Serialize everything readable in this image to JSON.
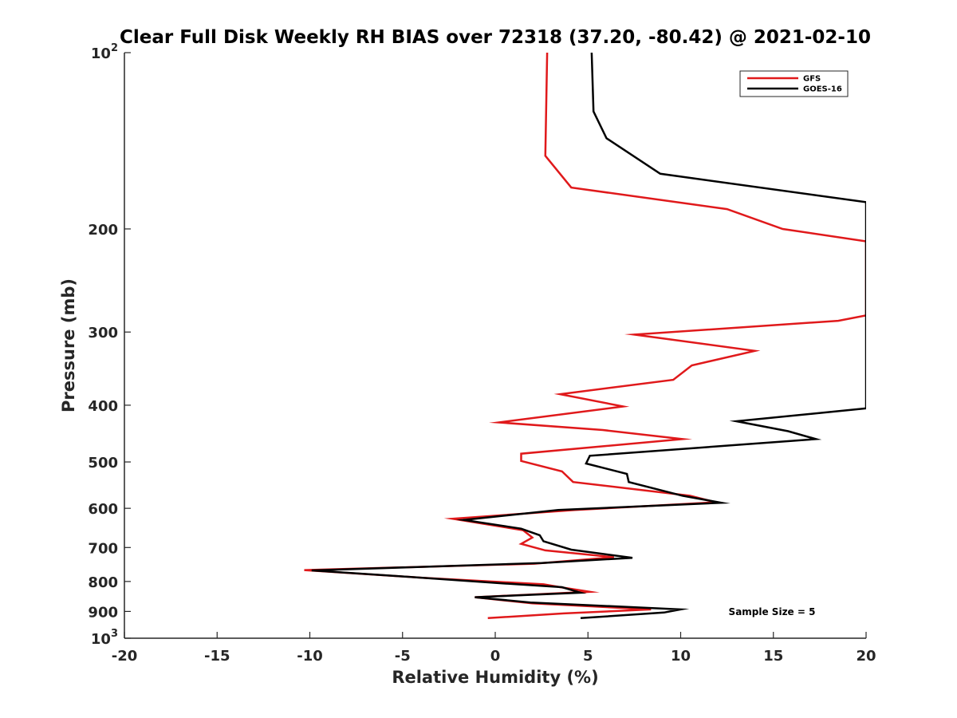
{
  "chart_data": {
    "type": "line",
    "title": "Clear Full Disk Weekly RH BIAS over 72318 (37.20, -80.42) @ 2021-02-10",
    "xlabel": "Relative Humidity (%)",
    "ylabel": "Pressure (mb)",
    "xlim": [
      -20,
      20
    ],
    "ylim": [
      100,
      1000
    ],
    "y_scale": "log",
    "y_reversed": true,
    "grid": false,
    "x_ticks": [
      -20,
      -15,
      -10,
      -5,
      0,
      5,
      10,
      15,
      20
    ],
    "x_tick_labels": [
      "-20",
      "-15",
      "-10",
      "-5",
      "0",
      "5",
      "10",
      "15",
      "20"
    ],
    "y_ticks": [
      100,
      200,
      300,
      400,
      500,
      600,
      700,
      800,
      900,
      1000
    ],
    "y_tick_labels": [
      {
        "base": "10",
        "exp": "2"
      },
      {
        "base": "200",
        "exp": ""
      },
      {
        "base": "300",
        "exp": ""
      },
      {
        "base": "400",
        "exp": ""
      },
      {
        "base": "500",
        "exp": ""
      },
      {
        "base": "600",
        "exp": ""
      },
      {
        "base": "700",
        "exp": ""
      },
      {
        "base": "800",
        "exp": ""
      },
      {
        "base": "900",
        "exp": ""
      },
      {
        "base": "10",
        "exp": "3"
      }
    ],
    "legend_position": "top-right",
    "annotation": "Sample Size = 5",
    "series": [
      {
        "name": "GFS",
        "color": "#e0191b",
        "points": [
          [
            2.8,
            100
          ],
          [
            2.7,
            150
          ],
          [
            4.1,
            170
          ],
          [
            12.5,
            185
          ],
          [
            15.5,
            200
          ],
          [
            20,
            210
          ],
          [
            20,
            281
          ],
          [
            18.5,
            287
          ],
          [
            7.5,
            303
          ],
          [
            14.0,
            323
          ],
          [
            10.6,
            342
          ],
          [
            9.6,
            362
          ],
          [
            3.5,
            383
          ],
          [
            6.9,
            402
          ],
          [
            0.2,
            428
          ],
          [
            5.8,
            441
          ],
          [
            10.1,
            457
          ],
          [
            1.4,
            484
          ],
          [
            1.4,
            498
          ],
          [
            3.6,
            519
          ],
          [
            4.2,
            541
          ],
          [
            10.5,
            571
          ],
          [
            11.9,
            586
          ],
          [
            4.3,
            604
          ],
          [
            -2.3,
            625
          ],
          [
            1.5,
            654
          ],
          [
            2.0,
            673
          ],
          [
            1.4,
            690
          ],
          [
            2.7,
            708
          ],
          [
            6.4,
            727
          ],
          [
            2.1,
            746
          ],
          [
            -10.3,
            765
          ],
          [
            -4.0,
            788
          ],
          [
            2.6,
            809
          ],
          [
            3.5,
            818
          ],
          [
            5.1,
            833
          ],
          [
            -1.1,
            851
          ],
          [
            2.0,
            872
          ],
          [
            8.4,
            893
          ],
          [
            3.7,
            907
          ],
          [
            -0.4,
            924
          ]
        ]
      },
      {
        "name": "GOES-16",
        "color": "#000000",
        "points": [
          [
            5.2,
            100
          ],
          [
            5.3,
            126
          ],
          [
            6.0,
            140
          ],
          [
            8.9,
            161
          ],
          [
            20,
            180
          ],
          [
            20,
            405
          ],
          [
            13.0,
            426
          ],
          [
            15.8,
            443
          ],
          [
            17.3,
            457
          ],
          [
            5.1,
            488
          ],
          [
            4.9,
            503
          ],
          [
            7.1,
            524
          ],
          [
            7.2,
            541
          ],
          [
            10.1,
            571
          ],
          [
            12.2,
            587
          ],
          [
            3.4,
            604
          ],
          [
            -1.7,
            628
          ],
          [
            1.4,
            650
          ],
          [
            2.4,
            667
          ],
          [
            2.6,
            683
          ],
          [
            4.1,
            706
          ],
          [
            7.4,
            729
          ],
          [
            2.5,
            744
          ],
          [
            -9.9,
            766
          ],
          [
            -5.1,
            784
          ],
          [
            0.4,
            806
          ],
          [
            3.6,
            818
          ],
          [
            4.6,
            836
          ],
          [
            -1.1,
            851
          ],
          [
            1.9,
            869
          ],
          [
            10.0,
            893
          ],
          [
            9.1,
            904
          ],
          [
            4.6,
            924
          ]
        ]
      }
    ]
  }
}
